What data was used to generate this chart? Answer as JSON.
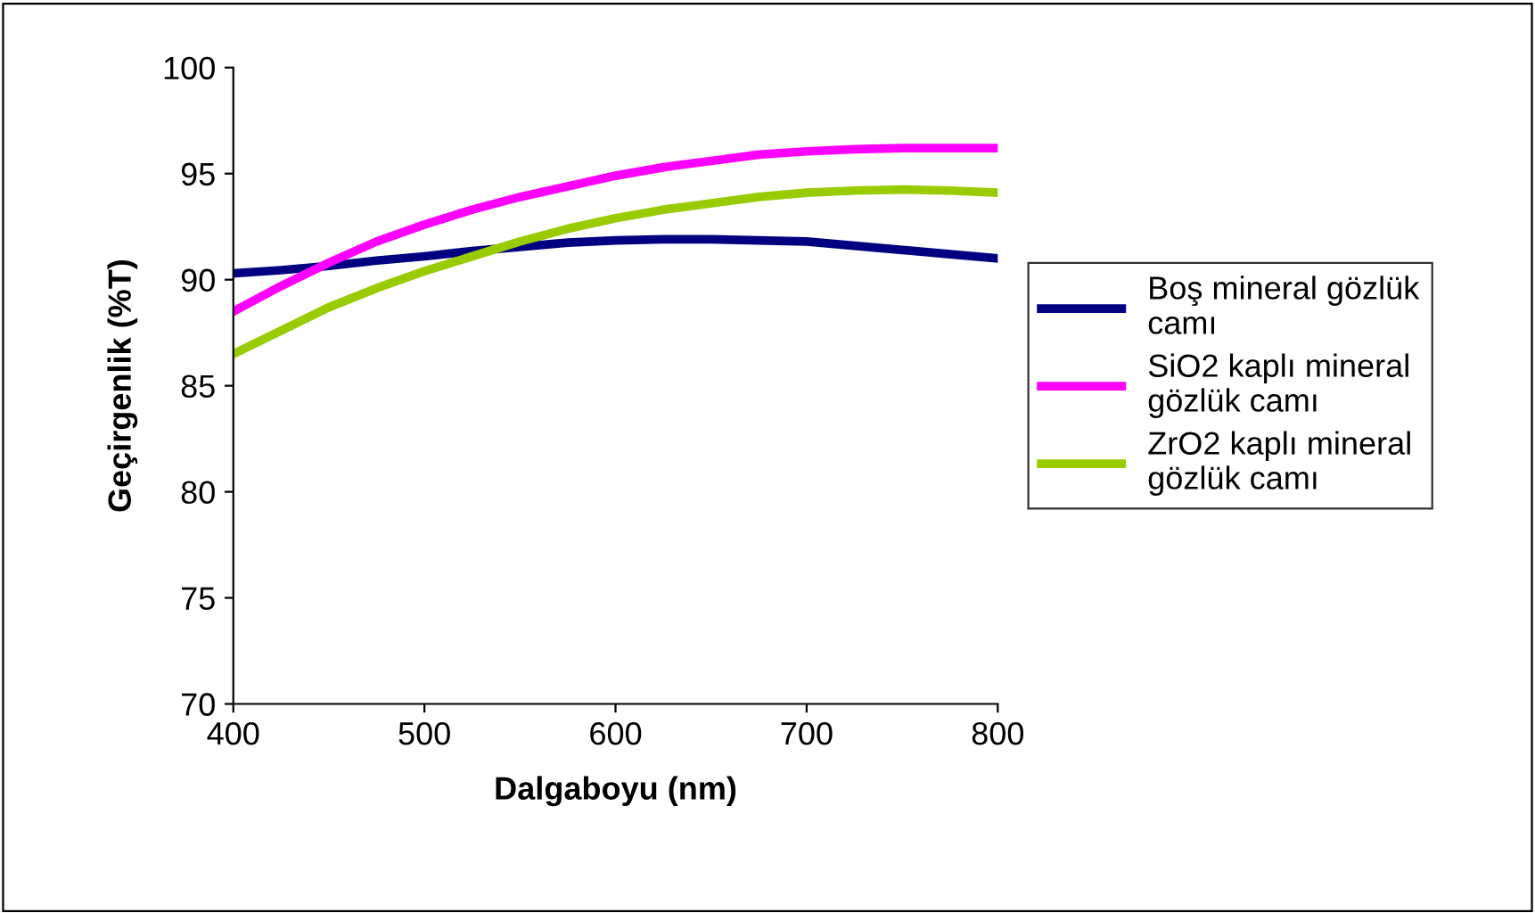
{
  "chart_data": {
    "type": "line",
    "xlabel": "Dalgaboyu (nm)",
    "ylabel": "Geçirgenlik (%T)",
    "x": [
      400,
      425,
      450,
      475,
      500,
      525,
      550,
      575,
      600,
      625,
      650,
      675,
      700,
      725,
      750,
      775,
      800
    ],
    "series": [
      {
        "name": "Boş mineral gözlük camı",
        "color": "#000080",
        "values": [
          90.3,
          90.45,
          90.65,
          90.9,
          91.1,
          91.35,
          91.55,
          91.75,
          91.85,
          91.9,
          91.9,
          91.85,
          91.8,
          91.6,
          91.4,
          91.2,
          91.0
        ]
      },
      {
        "name": "SiO2 kaplı mineral gözlük camı",
        "color": "#ff00ff",
        "values": [
          88.5,
          89.7,
          90.8,
          91.8,
          92.6,
          93.3,
          93.9,
          94.4,
          94.9,
          95.3,
          95.6,
          95.9,
          96.05,
          96.15,
          96.2,
          96.2,
          96.2
        ]
      },
      {
        "name": "ZrO2 kaplı mineral gözlük camı",
        "color": "#99cc00",
        "values": [
          86.5,
          87.6,
          88.7,
          89.6,
          90.4,
          91.1,
          91.8,
          92.4,
          92.9,
          93.3,
          93.6,
          93.9,
          94.1,
          94.2,
          94.25,
          94.2,
          94.1
        ]
      }
    ],
    "xlim": [
      400,
      800
    ],
    "xticks": [
      400,
      500,
      600,
      700,
      800
    ],
    "ylim": [
      70,
      100
    ],
    "yticks": [
      70,
      75,
      80,
      85,
      90,
      95,
      100
    ],
    "grid": false,
    "legend": "right",
    "marker": "none",
    "line_style": "solid"
  }
}
